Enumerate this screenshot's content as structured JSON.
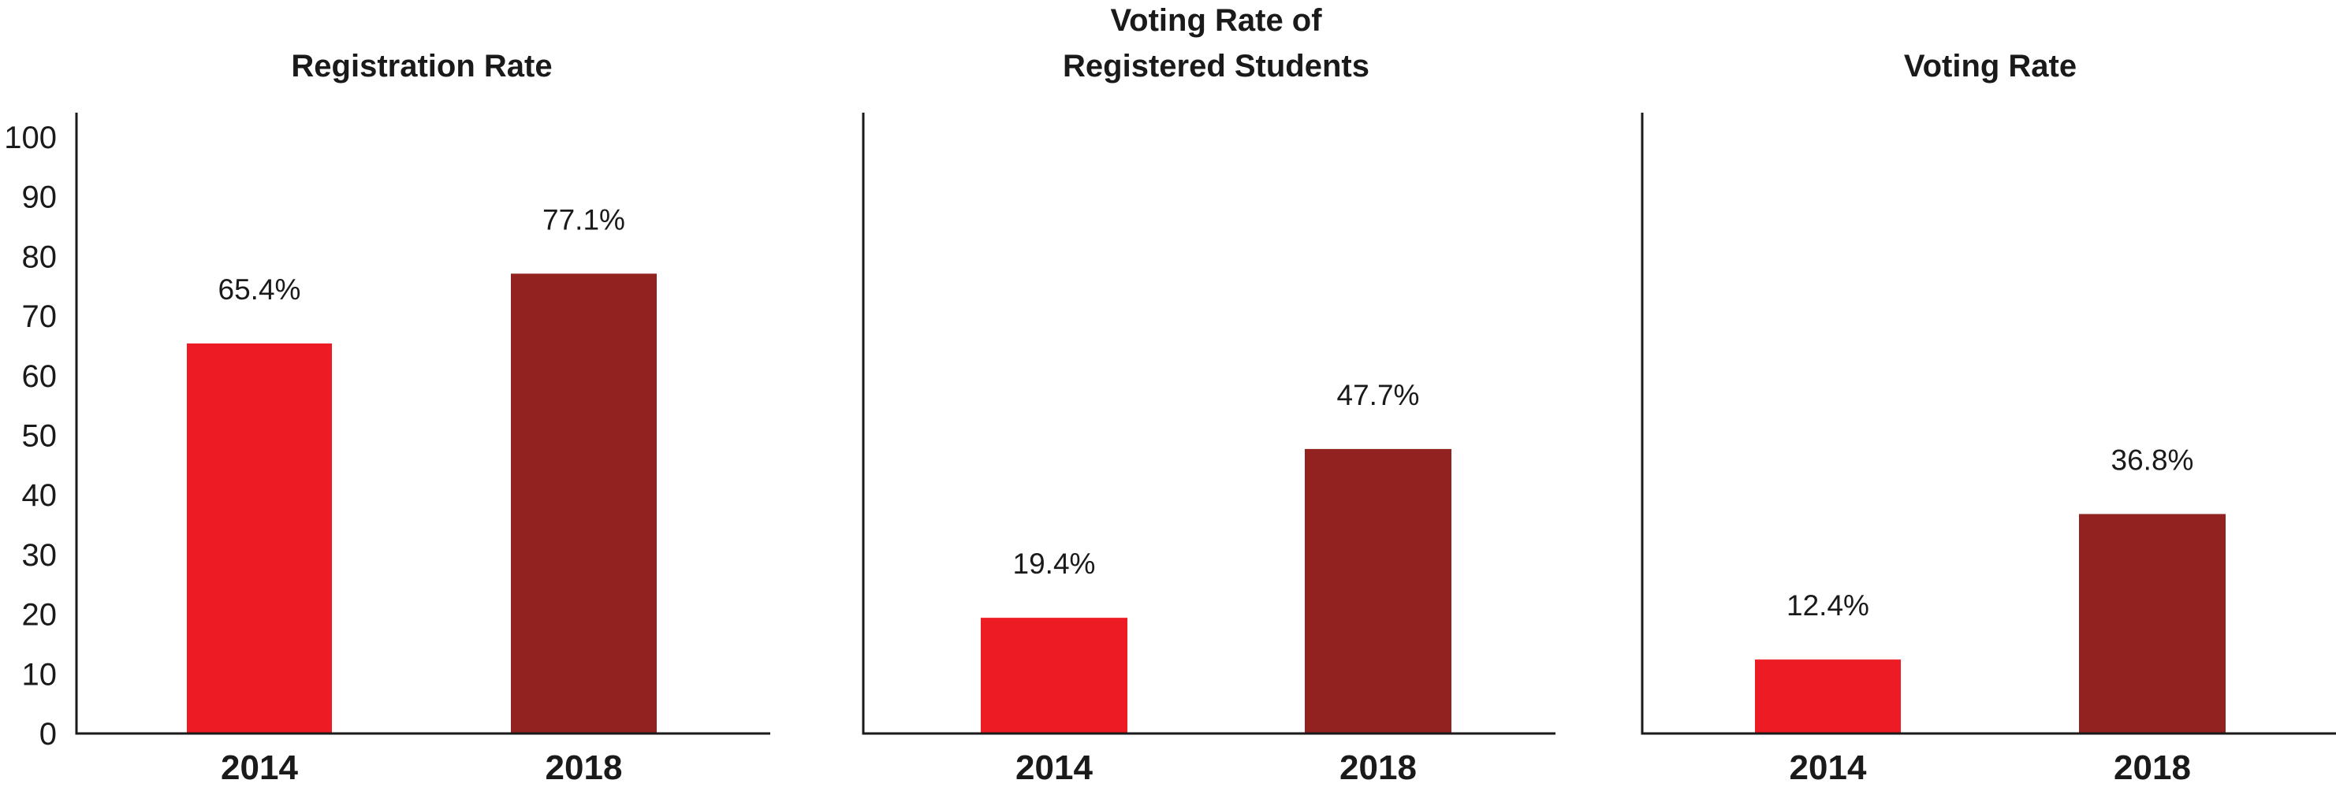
{
  "chart_data": [
    {
      "type": "bar",
      "title": "Registration Rate",
      "categories": [
        "2014",
        "2018"
      ],
      "values": [
        65.4,
        77.1
      ],
      "value_labels": [
        "65.4%",
        "77.1%"
      ],
      "ylim": [
        0,
        100
      ],
      "yticks": [
        0,
        10,
        20,
        30,
        40,
        50,
        60,
        70,
        80,
        90,
        100
      ],
      "show_yticks": true,
      "grid": false
    },
    {
      "type": "bar",
      "title": [
        "Voting Rate of",
        "Registered Students"
      ],
      "categories": [
        "2014",
        "2018"
      ],
      "values": [
        19.4,
        47.7
      ],
      "value_labels": [
        "19.4%",
        "47.7%"
      ],
      "ylim": [
        0,
        100
      ],
      "show_yticks": false,
      "grid": false
    },
    {
      "type": "bar",
      "title": "Voting Rate",
      "categories": [
        "2014",
        "2018"
      ],
      "values": [
        12.4,
        36.8
      ],
      "value_labels": [
        "12.4%",
        "36.8%"
      ],
      "ylim": [
        0,
        100
      ],
      "show_yticks": false,
      "grid": false
    }
  ],
  "colors": {
    "2014": "#ed1c24",
    "2018": "#922220",
    "axis": "#1a1a1a"
  }
}
